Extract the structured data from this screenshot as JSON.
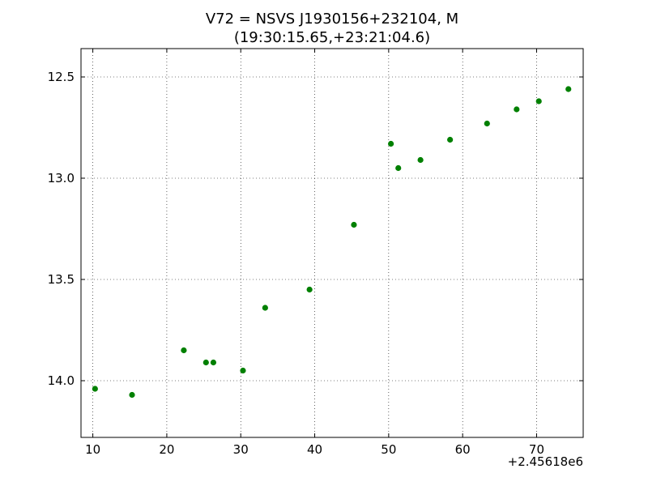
{
  "chart_data": {
    "type": "scatter",
    "title_line1": "V72 = NSVS J1930156+232104, M",
    "title_line2": "(19:30:15.65,+23:21:04.6)",
    "xlabel": "",
    "ylabel": "",
    "x_offset_label": "+2.45618e6",
    "xlim": [
      8.4,
      76.3
    ],
    "ylim": [
      14.28,
      12.36
    ],
    "y_inverted": true,
    "grid": true,
    "x_ticks": [
      10,
      20,
      30,
      40,
      50,
      60,
      70
    ],
    "x_tick_labels": [
      "10",
      "20",
      "30",
      "40",
      "50",
      "60",
      "70"
    ],
    "y_ticks": [
      12.5,
      13.0,
      13.5,
      14.0
    ],
    "y_tick_labels": [
      "12.5",
      "13.0",
      "13.5",
      "14.0"
    ],
    "color": "#008000",
    "points": [
      {
        "x": 10.3,
        "y": 14.04
      },
      {
        "x": 15.3,
        "y": 14.07
      },
      {
        "x": 22.3,
        "y": 13.85
      },
      {
        "x": 25.3,
        "y": 13.91
      },
      {
        "x": 26.3,
        "y": 13.91
      },
      {
        "x": 30.3,
        "y": 13.95
      },
      {
        "x": 33.3,
        "y": 13.64
      },
      {
        "x": 39.3,
        "y": 13.55
      },
      {
        "x": 45.3,
        "y": 13.23
      },
      {
        "x": 50.3,
        "y": 12.83
      },
      {
        "x": 51.3,
        "y": 12.95
      },
      {
        "x": 54.3,
        "y": 12.91
      },
      {
        "x": 58.3,
        "y": 12.81
      },
      {
        "x": 63.3,
        "y": 12.73
      },
      {
        "x": 67.3,
        "y": 12.66
      },
      {
        "x": 70.3,
        "y": 12.62
      },
      {
        "x": 74.3,
        "y": 12.56
      }
    ]
  }
}
